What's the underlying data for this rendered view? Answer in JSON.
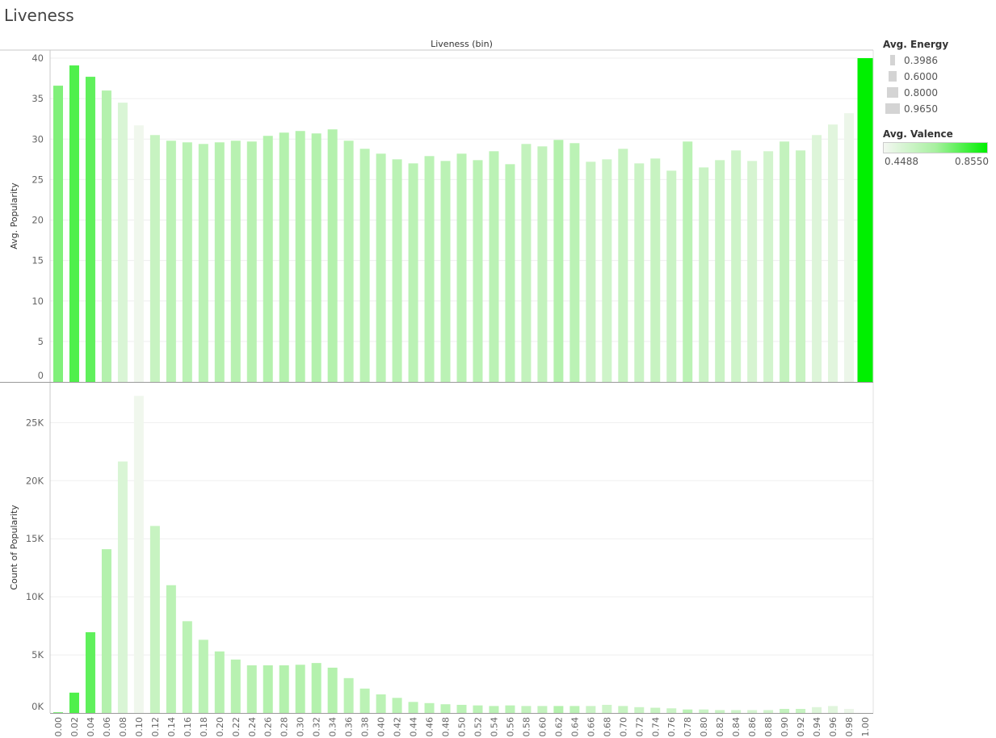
{
  "title": "Liveness",
  "legend": {
    "size_title": "Avg. Energy",
    "size_items": [
      {
        "label": "0.3986",
        "value": 0.3986
      },
      {
        "label": "0.6000",
        "value": 0.6
      },
      {
        "label": "0.8000",
        "value": 0.8
      },
      {
        "label": "0.9650",
        "value": 0.965
      }
    ],
    "color_title": "Avg. Valence",
    "color_min": "0.4488",
    "color_max": "0.8550",
    "color_low": "#f4f7f2",
    "color_mid": "#a8f0a0",
    "color_high": "#00f000"
  },
  "chart_data": {
    "type": "bar",
    "column_header": "Liveness (bin)",
    "categories": [
      "0.00",
      "0.02",
      "0.04",
      "0.06",
      "0.08",
      "0.10",
      "0.12",
      "0.14",
      "0.16",
      "0.18",
      "0.20",
      "0.22",
      "0.24",
      "0.26",
      "0.28",
      "0.30",
      "0.32",
      "0.34",
      "0.36",
      "0.38",
      "0.40",
      "0.42",
      "0.44",
      "0.46",
      "0.48",
      "0.50",
      "0.52",
      "0.54",
      "0.56",
      "0.58",
      "0.60",
      "0.62",
      "0.64",
      "0.66",
      "0.68",
      "0.70",
      "0.72",
      "0.74",
      "0.76",
      "0.78",
      "0.80",
      "0.82",
      "0.84",
      "0.86",
      "0.88",
      "0.90",
      "0.92",
      "0.94",
      "0.96",
      "0.98",
      "1.00"
    ],
    "valence": [
      0.7,
      0.76,
      0.74,
      0.62,
      0.52,
      0.46,
      0.57,
      0.6,
      0.6,
      0.6,
      0.61,
      0.61,
      0.61,
      0.62,
      0.62,
      0.62,
      0.62,
      0.62,
      0.6,
      0.6,
      0.6,
      0.6,
      0.6,
      0.6,
      0.6,
      0.6,
      0.6,
      0.6,
      0.6,
      0.58,
      0.58,
      0.62,
      0.6,
      0.56,
      0.55,
      0.57,
      0.56,
      0.57,
      0.56,
      0.6,
      0.56,
      0.56,
      0.55,
      0.53,
      0.54,
      0.58,
      0.57,
      0.51,
      0.5,
      0.47,
      0.855
    ],
    "panels": [
      {
        "name": "avg-popularity",
        "ylabel": "Avg. Popularity",
        "ylim": [
          0,
          41
        ],
        "ticks": [
          0,
          5,
          10,
          15,
          20,
          25,
          30,
          35,
          40
        ],
        "tick_labels": [
          "0",
          "5",
          "10",
          "15",
          "20",
          "25",
          "30",
          "35",
          "40"
        ],
        "values": [
          36.6,
          39.1,
          37.7,
          36.0,
          34.5,
          31.7,
          30.5,
          29.8,
          29.6,
          29.4,
          29.6,
          29.8,
          29.7,
          30.4,
          30.8,
          31.0,
          30.7,
          31.2,
          29.8,
          28.8,
          28.2,
          27.5,
          27.0,
          27.9,
          27.3,
          28.2,
          27.4,
          28.5,
          26.9,
          29.4,
          29.1,
          29.9,
          29.5,
          27.2,
          27.5,
          28.8,
          27.0,
          27.6,
          26.1,
          29.7,
          26.5,
          27.4,
          28.6,
          27.3,
          28.5,
          29.7,
          28.6,
          30.5,
          31.8,
          33.2,
          40.0
        ],
        "grid": true
      },
      {
        "name": "count-of-popularity",
        "ylabel": "Count of Popularity",
        "ylim": [
          0,
          28500
        ],
        "ticks": [
          0,
          5000,
          10000,
          15000,
          20000,
          25000
        ],
        "tick_labels": [
          "0K",
          "5K",
          "10K",
          "15K",
          "20K",
          "25K"
        ],
        "values": [
          60,
          1750,
          6950,
          14100,
          21650,
          27300,
          16100,
          11000,
          7900,
          6300,
          5300,
          4600,
          4100,
          4100,
          4100,
          4150,
          4300,
          3900,
          3000,
          2100,
          1600,
          1300,
          950,
          850,
          750,
          700,
          650,
          600,
          650,
          600,
          600,
          600,
          600,
          600,
          700,
          600,
          500,
          450,
          400,
          300,
          300,
          250,
          250,
          250,
          250,
          350,
          350,
          500,
          600,
          350,
          0
        ],
        "grid": true
      }
    ]
  }
}
